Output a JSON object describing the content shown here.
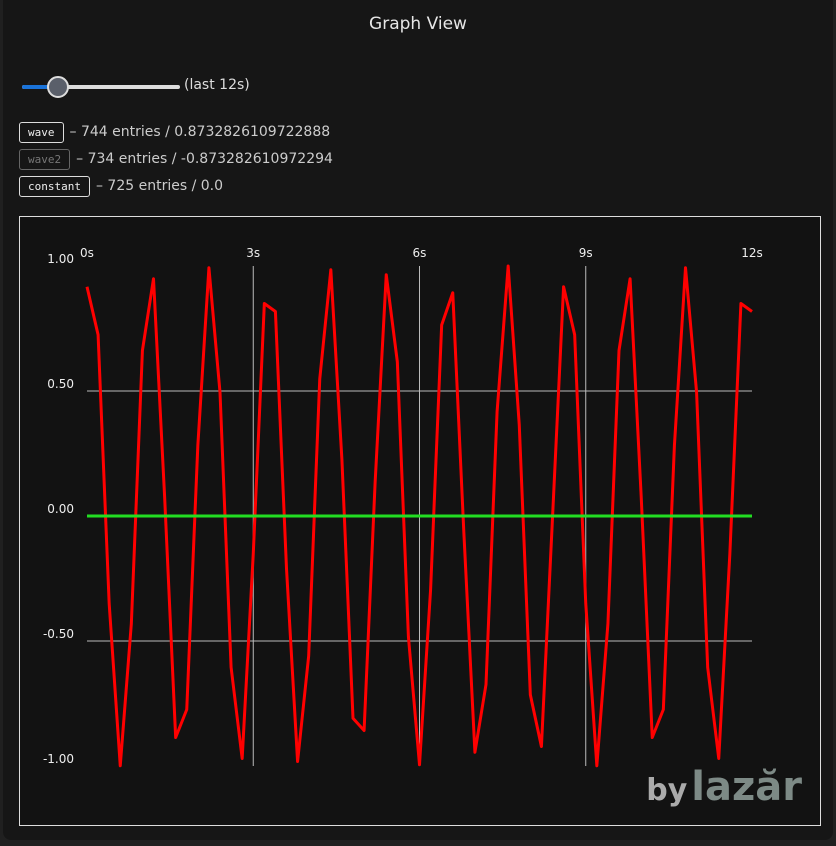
{
  "header": {
    "title": "Graph View"
  },
  "slider": {
    "label": "(last 12s)"
  },
  "chart_data": {
    "type": "line",
    "x": [
      0,
      0.2,
      0.4,
      0.6,
      0.8,
      1.0,
      1.2,
      1.4,
      1.6,
      1.8,
      2.0,
      2.2,
      2.4,
      2.6,
      2.8,
      3.0,
      3.2,
      3.4,
      3.6,
      3.8,
      4.0,
      4.2,
      4.4,
      4.6,
      4.8,
      5.0,
      5.2,
      5.4,
      5.6,
      5.8,
      6.0,
      6.2,
      6.4,
      6.6,
      6.8,
      7.0,
      7.2,
      7.4,
      7.6,
      7.8,
      8.0,
      8.2,
      8.4,
      8.6,
      8.8,
      9.0,
      9.2,
      9.4,
      9.6,
      9.8,
      10.0,
      10.2,
      10.4,
      10.6,
      10.8,
      11.0,
      11.2,
      11.4,
      11.6,
      11.8,
      12.0
    ],
    "series": [
      {
        "name": "wave",
        "summary": "– 744 entries / 0.8732826109722888",
        "enabled": true,
        "color": "#ff0000",
        "values": [
          0.917,
          0.725,
          -0.35,
          -0.999,
          -0.431,
          0.662,
          0.949,
          0.08,
          -0.886,
          -0.774,
          0.282,
          0.993,
          0.495,
          -0.605,
          -0.97,
          -0.152,
          0.85,
          0.818,
          -0.21,
          -0.982,
          -0.56,
          0.548,
          0.985,
          0.225,
          -0.809,
          -0.858,
          0.138,
          0.965,
          0.617,
          -0.483,
          -0.995,
          -0.295,
          0.764,
          0.893,
          -0.065,
          -0.945,
          -0.674,
          0.417,
          1.0,
          0.365,
          -0.715,
          -0.922,
          -0.008,
          0.917,
          0.725,
          -0.35,
          -0.999,
          -0.431,
          0.662,
          0.949,
          0.08,
          -0.886,
          -0.774,
          0.282,
          0.993,
          0.495,
          -0.605,
          -0.97,
          -0.152,
          0.85,
          0.818
        ]
      },
      {
        "name": "wave2",
        "summary": "– 734 entries / -0.873282610972294",
        "enabled": false
      },
      {
        "name": "constant",
        "summary": "– 725 entries / 0.0",
        "enabled": true,
        "color": "#22dd22",
        "values": [
          0,
          0,
          0,
          0,
          0,
          0,
          0,
          0,
          0,
          0,
          0,
          0,
          0,
          0,
          0,
          0,
          0,
          0,
          0,
          0,
          0,
          0,
          0,
          0,
          0,
          0,
          0,
          0,
          0,
          0,
          0,
          0,
          0,
          0,
          0,
          0,
          0,
          0,
          0,
          0,
          0,
          0,
          0,
          0,
          0,
          0,
          0,
          0,
          0,
          0,
          0,
          0,
          0,
          0,
          0,
          0,
          0,
          0,
          0,
          0,
          0
        ]
      }
    ],
    "xlim": [
      0,
      12
    ],
    "xticks": [
      {
        "value": 0,
        "label": "0s"
      },
      {
        "value": 3,
        "label": "3s"
      },
      {
        "value": 6,
        "label": "6s"
      },
      {
        "value": 9,
        "label": "9s"
      },
      {
        "value": 12,
        "label": "12s"
      }
    ],
    "ylim": [
      -1,
      1
    ],
    "yticks": [
      {
        "value": 1,
        "label": "1.00"
      },
      {
        "value": 0.5,
        "label": "0.50"
      },
      {
        "value": 0,
        "label": "0.00"
      },
      {
        "value": -0.5,
        "label": "-0.50"
      },
      {
        "value": -1,
        "label": "-1.00"
      }
    ],
    "grid": true
  },
  "watermark": {
    "by": "by",
    "brand": "lazăr"
  }
}
